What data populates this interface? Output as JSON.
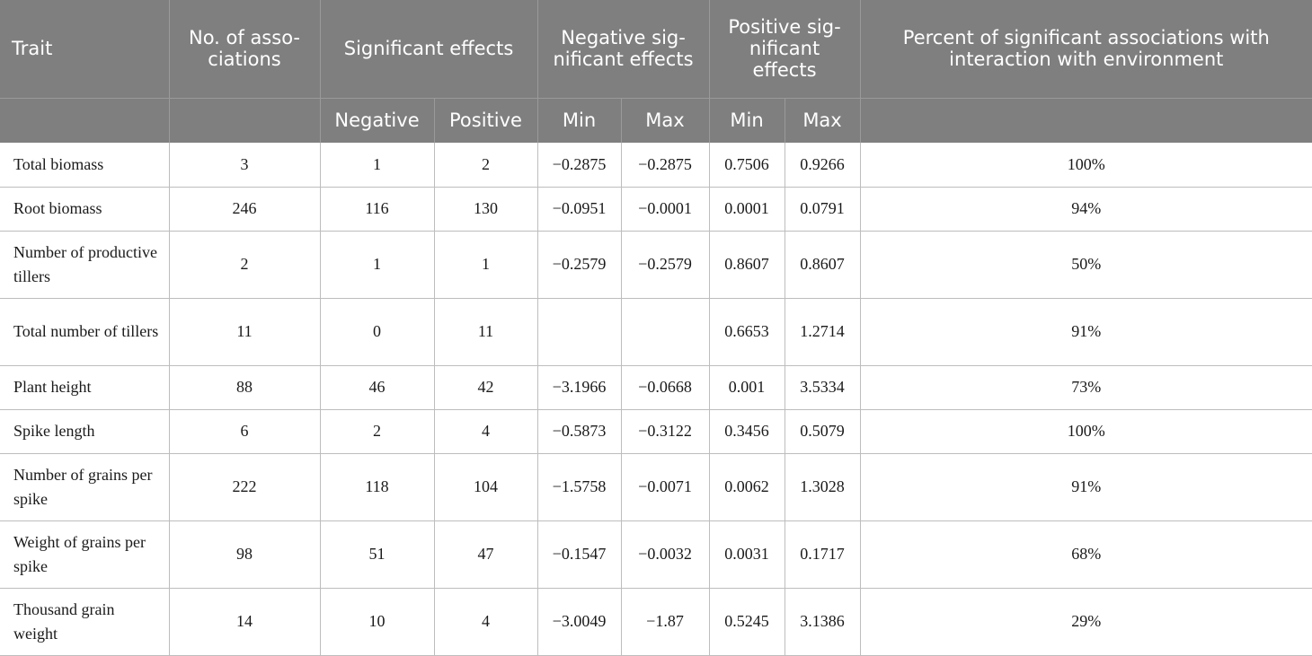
{
  "table": {
    "headers": {
      "trait": "Trait",
      "num_associations": "No. of asso-ciations",
      "significant_effects": "Significant effects",
      "negative_significant_effects": "Negative sig-nificant effects",
      "positive_significant_effects": "Positive sig-nificant effects",
      "percent_interaction": "Percent of significant associations with interaction with environment",
      "sub_negative": "Negative",
      "sub_positive": "Positive",
      "sub_neg_min": "Min",
      "sub_neg_max": "Max",
      "sub_pos_min": "Min",
      "sub_pos_max": "Max"
    },
    "rows": [
      {
        "trait": "Total biomass",
        "num": "3",
        "neg": "1",
        "pos": "2",
        "neg_min": "−0.2875",
        "neg_max": "−0.2875",
        "pos_min": "0.7506",
        "pos_max": "0.9266",
        "pct": "100%"
      },
      {
        "trait": "Root biomass",
        "num": "246",
        "neg": "116",
        "pos": "130",
        "neg_min": "−0.0951",
        "neg_max": "−0.0001",
        "pos_min": "0.0001",
        "pos_max": "0.0791",
        "pct": "94%"
      },
      {
        "trait": "Number of productive tillers",
        "num": "2",
        "neg": "1",
        "pos": "1",
        "neg_min": "−0.2579",
        "neg_max": "−0.2579",
        "pos_min": "0.8607",
        "pos_max": "0.8607",
        "pct": "50%"
      },
      {
        "trait": "Total number of tillers",
        "num": "11",
        "neg": "0",
        "pos": "11",
        "neg_min": "",
        "neg_max": "",
        "pos_min": "0.6653",
        "pos_max": "1.2714",
        "pct": "91%"
      },
      {
        "trait": "Plant height",
        "num": "88",
        "neg": "46",
        "pos": "42",
        "neg_min": "−3.1966",
        "neg_max": "−0.0668",
        "pos_min": "0.001",
        "pos_max": "3.5334",
        "pct": "73%"
      },
      {
        "trait": "Spike length",
        "num": "6",
        "neg": "2",
        "pos": "4",
        "neg_min": "−0.5873",
        "neg_max": "−0.3122",
        "pos_min": "0.3456",
        "pos_max": "0.5079",
        "pct": "100%"
      },
      {
        "trait": "Number of grains per spike",
        "num": "222",
        "neg": "118",
        "pos": "104",
        "neg_min": "−1.5758",
        "neg_max": "−0.0071",
        "pos_min": "0.0062",
        "pos_max": "1.3028",
        "pct": "91%"
      },
      {
        "trait": "Weight of grains per spike",
        "num": "98",
        "neg": "51",
        "pos": "47",
        "neg_min": "−0.1547",
        "neg_max": "−0.0032",
        "pos_min": "0.0031",
        "pos_max": "0.1717",
        "pct": "68%"
      },
      {
        "trait": "Thousand grain weight",
        "num": "14",
        "neg": "10",
        "pos": "4",
        "neg_min": "−3.0049",
        "neg_max": "−1.87",
        "pos_min": "0.5245",
        "pos_max": "3.1386",
        "pct": "29%"
      }
    ]
  },
  "colors": {
    "header_bg": "#7f7f7f",
    "header_text": "#ffffff",
    "grid_line": "#bdbdbd"
  }
}
